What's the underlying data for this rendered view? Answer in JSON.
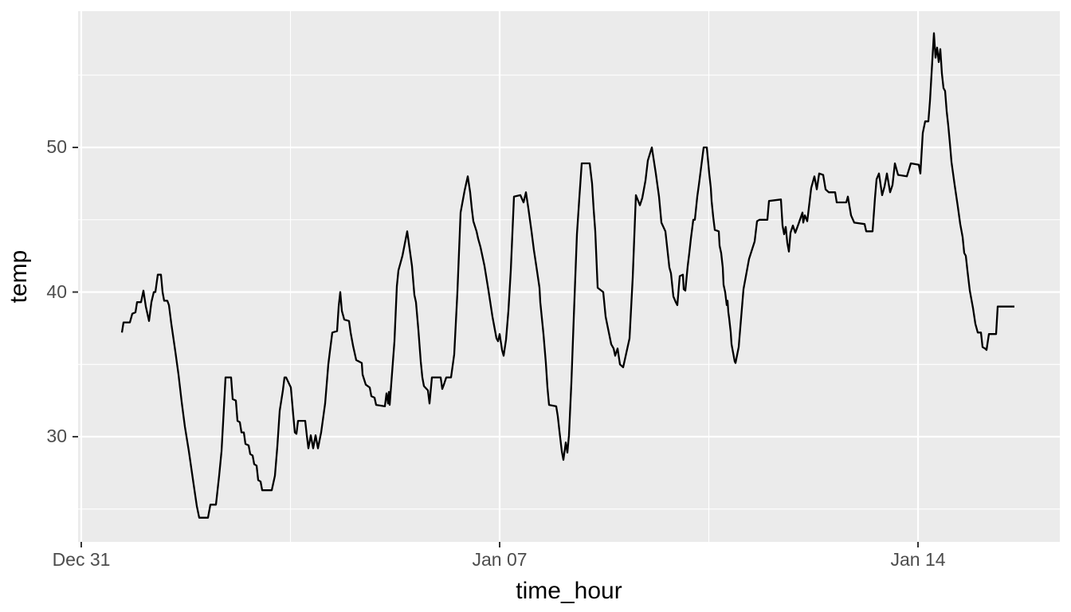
{
  "chart_data": {
    "type": "line",
    "title": "",
    "xlabel": "time_hour",
    "ylabel": "temp",
    "legend_position": "none",
    "grid": "on",
    "theme": "ggplot2-grey",
    "x_axis": {
      "unit": "days since Dec 31 00:00",
      "tick_labels": [
        "Dec 31",
        "Jan 07",
        "Jan 14"
      ],
      "tick_days": [
        0,
        7,
        14
      ],
      "minor_days": [
        3.5,
        10.5
      ],
      "domain_days": [
        -0.053,
        16.373
      ]
    },
    "y_axis": {
      "ticks": [
        30,
        40,
        50
      ],
      "minor": [
        25,
        35,
        45,
        55
      ],
      "domain": [
        22.73,
        59.42
      ]
    },
    "style": {
      "panel_bg": "#EBEBEB",
      "grid_color": "#FFFFFF",
      "line_color": "#000000",
      "tick_label_color": "#4D4D4D",
      "axis_title_color": "#000000",
      "tick_mark_color": "#333333"
    },
    "points": [
      [
        0.68,
        37.2
      ],
      [
        0.707,
        37.9
      ],
      [
        0.813,
        37.9
      ],
      [
        0.853,
        38.5
      ],
      [
        0.907,
        38.6
      ],
      [
        0.933,
        39.3
      ],
      [
        1.0,
        39.3
      ],
      [
        1.04,
        40.1
      ],
      [
        1.08,
        39.0
      ],
      [
        1.133,
        38.0
      ],
      [
        1.173,
        39.3
      ],
      [
        1.213,
        40.0
      ],
      [
        1.24,
        40.0
      ],
      [
        1.28,
        41.2
      ],
      [
        1.333,
        41.2
      ],
      [
        1.36,
        40.0
      ],
      [
        1.387,
        39.4
      ],
      [
        1.44,
        39.4
      ],
      [
        1.467,
        39.1
      ],
      [
        1.507,
        37.8
      ],
      [
        1.573,
        35.9
      ],
      [
        1.6,
        35.1
      ],
      [
        1.627,
        34.3
      ],
      [
        1.68,
        32.4
      ],
      [
        1.733,
        30.7
      ],
      [
        1.8,
        29.0
      ],
      [
        1.88,
        26.7
      ],
      [
        1.933,
        25.2
      ],
      [
        1.973,
        24.4
      ],
      [
        2.12,
        24.4
      ],
      [
        2.16,
        25.3
      ],
      [
        2.253,
        25.3
      ],
      [
        2.307,
        27.3
      ],
      [
        2.347,
        29.0
      ],
      [
        2.373,
        31.0
      ],
      [
        2.413,
        34.1
      ],
      [
        2.507,
        34.1
      ],
      [
        2.533,
        32.6
      ],
      [
        2.587,
        32.5
      ],
      [
        2.613,
        31.1
      ],
      [
        2.653,
        31.0
      ],
      [
        2.68,
        30.3
      ],
      [
        2.72,
        30.3
      ],
      [
        2.747,
        29.5
      ],
      [
        2.8,
        29.4
      ],
      [
        2.827,
        28.8
      ],
      [
        2.867,
        28.7
      ],
      [
        2.893,
        28.1
      ],
      [
        2.933,
        28.0
      ],
      [
        2.96,
        27.0
      ],
      [
        3.0,
        26.9
      ],
      [
        3.027,
        26.3
      ],
      [
        3.187,
        26.3
      ],
      [
        3.24,
        27.3
      ],
      [
        3.28,
        29.3
      ],
      [
        3.32,
        31.8
      ],
      [
        3.373,
        33.2
      ],
      [
        3.4,
        34.1
      ],
      [
        3.427,
        34.1
      ],
      [
        3.507,
        33.4
      ],
      [
        3.547,
        31.5
      ],
      [
        3.573,
        30.3
      ],
      [
        3.6,
        30.2
      ],
      [
        3.627,
        31.1
      ],
      [
        3.747,
        31.1
      ],
      [
        3.773,
        30.1
      ],
      [
        3.8,
        29.2
      ],
      [
        3.84,
        30.1
      ],
      [
        3.88,
        29.2
      ],
      [
        3.92,
        30.1
      ],
      [
        3.96,
        29.2
      ],
      [
        4.013,
        30.3
      ],
      [
        4.08,
        32.3
      ],
      [
        4.133,
        35.0
      ],
      [
        4.16,
        35.9
      ],
      [
        4.2,
        37.2
      ],
      [
        4.28,
        37.3
      ],
      [
        4.307,
        39.0
      ],
      [
        4.333,
        40.0
      ],
      [
        4.36,
        38.7
      ],
      [
        4.4,
        38.1
      ],
      [
        4.48,
        38.0
      ],
      [
        4.507,
        37.2
      ],
      [
        4.547,
        36.3
      ],
      [
        4.6,
        35.3
      ],
      [
        4.693,
        35.1
      ],
      [
        4.707,
        34.3
      ],
      [
        4.76,
        33.6
      ],
      [
        4.827,
        33.4
      ],
      [
        4.853,
        32.8
      ],
      [
        4.907,
        32.7
      ],
      [
        4.933,
        32.2
      ],
      [
        5.08,
        32.1
      ],
      [
        5.107,
        33.0
      ],
      [
        5.133,
        32.3
      ],
      [
        5.147,
        33.1
      ],
      [
        5.16,
        32.2
      ],
      [
        5.24,
        36.6
      ],
      [
        5.28,
        40.4
      ],
      [
        5.307,
        41.5
      ],
      [
        5.373,
        42.5
      ],
      [
        5.453,
        44.2
      ],
      [
        5.533,
        41.8
      ],
      [
        5.573,
        39.8
      ],
      [
        5.6,
        39.3
      ],
      [
        5.64,
        37.4
      ],
      [
        5.68,
        35.2
      ],
      [
        5.707,
        34.1
      ],
      [
        5.733,
        33.5
      ],
      [
        5.8,
        33.2
      ],
      [
        5.827,
        32.3
      ],
      [
        5.867,
        34.1
      ],
      [
        6.013,
        34.1
      ],
      [
        6.04,
        33.3
      ],
      [
        6.067,
        33.6
      ],
      [
        6.107,
        34.1
      ],
      [
        6.187,
        34.1
      ],
      [
        6.24,
        35.7
      ],
      [
        6.293,
        40.0
      ],
      [
        6.347,
        45.5
      ],
      [
        6.413,
        47.0
      ],
      [
        6.467,
        48.0
      ],
      [
        6.507,
        46.9
      ],
      [
        6.533,
        45.8
      ],
      [
        6.56,
        44.9
      ],
      [
        6.613,
        44.2
      ],
      [
        6.64,
        43.7
      ],
      [
        6.68,
        43.1
      ],
      [
        6.747,
        41.8
      ],
      [
        6.813,
        40.1
      ],
      [
        6.88,
        38.3
      ],
      [
        6.947,
        36.8
      ],
      [
        6.973,
        36.6
      ],
      [
        7.0,
        37.1
      ],
      [
        7.04,
        36.0
      ],
      [
        7.067,
        35.6
      ],
      [
        7.107,
        36.7
      ],
      [
        7.147,
        38.7
      ],
      [
        7.187,
        41.5
      ],
      [
        7.24,
        46.6
      ],
      [
        7.347,
        46.7
      ],
      [
        7.4,
        46.2
      ],
      [
        7.44,
        46.9
      ],
      [
        7.48,
        45.8
      ],
      [
        7.533,
        44.2
      ],
      [
        7.573,
        42.9
      ],
      [
        7.613,
        41.8
      ],
      [
        7.667,
        40.3
      ],
      [
        7.68,
        39.3
      ],
      [
        7.733,
        37.1
      ],
      [
        7.773,
        35.1
      ],
      [
        7.8,
        33.4
      ],
      [
        7.827,
        32.2
      ],
      [
        7.947,
        32.1
      ],
      [
        7.973,
        31.4
      ],
      [
        8.0,
        30.4
      ],
      [
        8.04,
        29.0
      ],
      [
        8.067,
        28.4
      ],
      [
        8.107,
        29.6
      ],
      [
        8.133,
        28.9
      ],
      [
        8.16,
        30.1
      ],
      [
        8.2,
        33.7
      ],
      [
        8.24,
        38.2
      ],
      [
        8.293,
        44.0
      ],
      [
        8.333,
        46.5
      ],
      [
        8.373,
        48.9
      ],
      [
        8.507,
        48.9
      ],
      [
        8.547,
        47.5
      ],
      [
        8.573,
        45.7
      ],
      [
        8.6,
        44.2
      ],
      [
        8.64,
        40.3
      ],
      [
        8.733,
        40.0
      ],
      [
        8.773,
        38.3
      ],
      [
        8.867,
        36.4
      ],
      [
        8.907,
        36.1
      ],
      [
        8.933,
        35.6
      ],
      [
        8.973,
        36.1
      ],
      [
        9.013,
        35.0
      ],
      [
        9.067,
        34.8
      ],
      [
        9.12,
        35.8
      ],
      [
        9.173,
        36.8
      ],
      [
        9.227,
        41.0
      ],
      [
        9.28,
        46.7
      ],
      [
        9.347,
        46.0
      ],
      [
        9.387,
        46.5
      ],
      [
        9.44,
        47.7
      ],
      [
        9.48,
        49.1
      ],
      [
        9.547,
        50.0
      ],
      [
        9.613,
        48.2
      ],
      [
        9.667,
        46.6
      ],
      [
        9.707,
        44.8
      ],
      [
        9.773,
        44.2
      ],
      [
        9.8,
        43.2
      ],
      [
        9.813,
        42.7
      ],
      [
        9.84,
        41.7
      ],
      [
        9.867,
        41.3
      ],
      [
        9.907,
        39.7
      ],
      [
        9.947,
        39.3
      ],
      [
        9.973,
        39.1
      ],
      [
        10.013,
        41.1
      ],
      [
        10.067,
        41.2
      ],
      [
        10.08,
        40.2
      ],
      [
        10.107,
        40.1
      ],
      [
        10.147,
        41.8
      ],
      [
        10.173,
        42.7
      ],
      [
        10.2,
        43.7
      ],
      [
        10.24,
        45.0
      ],
      [
        10.267,
        45.0
      ],
      [
        10.307,
        46.6
      ],
      [
        10.333,
        47.4
      ],
      [
        10.373,
        48.7
      ],
      [
        10.413,
        50.0
      ],
      [
        10.467,
        50.0
      ],
      [
        10.507,
        48.2
      ],
      [
        10.533,
        47.2
      ],
      [
        10.547,
        46.3
      ],
      [
        10.573,
        45.2
      ],
      [
        10.6,
        44.3
      ],
      [
        10.667,
        44.2
      ],
      [
        10.68,
        43.2
      ],
      [
        10.707,
        42.7
      ],
      [
        10.733,
        41.7
      ],
      [
        10.747,
        40.5
      ],
      [
        10.773,
        40.0
      ],
      [
        10.8,
        39.1
      ],
      [
        10.813,
        39.4
      ],
      [
        10.827,
        38.6
      ],
      [
        10.84,
        38.2
      ],
      [
        10.867,
        37.2
      ],
      [
        10.88,
        36.4
      ],
      [
        10.907,
        35.8
      ],
      [
        10.933,
        35.2
      ],
      [
        10.947,
        35.1
      ],
      [
        11.0,
        36.2
      ],
      [
        11.04,
        38.2
      ],
      [
        11.08,
        40.2
      ],
      [
        11.173,
        42.3
      ],
      [
        11.267,
        43.5
      ],
      [
        11.307,
        44.9
      ],
      [
        11.347,
        45.0
      ],
      [
        11.48,
        45.0
      ],
      [
        11.507,
        46.3
      ],
      [
        11.707,
        46.4
      ],
      [
        11.733,
        44.6
      ],
      [
        11.76,
        44.0
      ],
      [
        11.787,
        44.5
      ],
      [
        11.813,
        43.4
      ],
      [
        11.84,
        42.8
      ],
      [
        11.867,
        44.1
      ],
      [
        11.907,
        44.6
      ],
      [
        11.947,
        44.1
      ],
      [
        12.0,
        44.7
      ],
      [
        12.067,
        45.5
      ],
      [
        12.08,
        44.8
      ],
      [
        12.107,
        45.3
      ],
      [
        12.147,
        44.9
      ],
      [
        12.173,
        45.8
      ],
      [
        12.213,
        47.2
      ],
      [
        12.267,
        48.0
      ],
      [
        12.307,
        47.1
      ],
      [
        12.347,
        48.2
      ],
      [
        12.413,
        48.1
      ],
      [
        12.453,
        47.1
      ],
      [
        12.507,
        46.9
      ],
      [
        12.613,
        46.9
      ],
      [
        12.64,
        46.2
      ],
      [
        12.8,
        46.2
      ],
      [
        12.827,
        46.6
      ],
      [
        12.88,
        45.3
      ],
      [
        12.933,
        44.8
      ],
      [
        13.107,
        44.7
      ],
      [
        13.133,
        44.2
      ],
      [
        13.24,
        44.2
      ],
      [
        13.28,
        46.5
      ],
      [
        13.307,
        47.8
      ],
      [
        13.347,
        48.2
      ],
      [
        13.4,
        46.7
      ],
      [
        13.44,
        47.3
      ],
      [
        13.48,
        48.2
      ],
      [
        13.533,
        46.9
      ],
      [
        13.573,
        47.4
      ],
      [
        13.613,
        48.9
      ],
      [
        13.667,
        48.1
      ],
      [
        13.813,
        48.0
      ],
      [
        13.88,
        48.9
      ],
      [
        14.013,
        48.8
      ],
      [
        14.04,
        48.2
      ],
      [
        14.08,
        51.0
      ],
      [
        14.12,
        51.8
      ],
      [
        14.173,
        51.8
      ],
      [
        14.2,
        53.2
      ],
      [
        14.227,
        55.1
      ],
      [
        14.267,
        57.9
      ],
      [
        14.293,
        56.2
      ],
      [
        14.32,
        56.9
      ],
      [
        14.347,
        55.9
      ],
      [
        14.373,
        56.8
      ],
      [
        14.4,
        55.1
      ],
      [
        14.427,
        54.1
      ],
      [
        14.453,
        53.9
      ],
      [
        14.48,
        52.5
      ],
      [
        14.507,
        51.5
      ],
      [
        14.533,
        50.3
      ],
      [
        14.56,
        49.0
      ],
      [
        14.613,
        47.4
      ],
      [
        14.667,
        45.9
      ],
      [
        14.707,
        44.7
      ],
      [
        14.747,
        43.8
      ],
      [
        14.773,
        42.7
      ],
      [
        14.8,
        42.5
      ],
      [
        14.827,
        41.5
      ],
      [
        14.867,
        40.1
      ],
      [
        14.92,
        38.9
      ],
      [
        14.96,
        37.8
      ],
      [
        15.0,
        37.2
      ],
      [
        15.053,
        37.2
      ],
      [
        15.08,
        36.2
      ],
      [
        15.12,
        36.1
      ],
      [
        15.147,
        36.0
      ],
      [
        15.187,
        37.1
      ],
      [
        15.307,
        37.1
      ],
      [
        15.333,
        39.0
      ],
      [
        15.613,
        39.0
      ]
    ]
  }
}
